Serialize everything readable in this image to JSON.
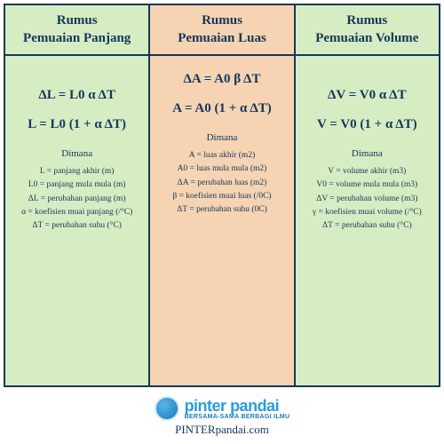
{
  "table": {
    "border_color": "#14375a",
    "text_color": "#14375a",
    "columns": [
      {
        "bg": "#d6edc3",
        "title_line1": "Rumus",
        "title_line2": "Pemuaian Panjang",
        "formula1": "ΔL = L0 α ΔT",
        "formula2": "L = L0 (1 + α ΔT)",
        "where": "Dimana",
        "defs": [
          "L = panjang akhir (m)",
          "L0 = panjang mula mula (m)",
          "ΔL = perubahan panjang (m)",
          "α = koefisien muai panjang (/°C)",
          "ΔT = perubahan suhu (°C)"
        ]
      },
      {
        "bg": "#f5d3b3",
        "title_line1": "Rumus",
        "title_line2": "Pemuaian Luas",
        "formula1": "ΔA = A0 β ΔT",
        "formula2": "A = A0 (1 + α ΔT)",
        "where": "Dimana",
        "defs": [
          "A = luas akhir (m2)",
          "A0 = luas mula mula (m2)",
          "ΔA = perubahan luas (m2)",
          "β = koefisien muai luas (/0C)",
          "ΔT = perubahan suhu (0C)"
        ]
      },
      {
        "bg": "#d6edc3",
        "title_line1": "Rumus",
        "title_line2": "Pemuaian Volume",
        "formula1": "ΔV = V0 α ΔT",
        "formula2": "V = V0 (1 + α ΔT)",
        "where": "Dimana",
        "defs": [
          "V = volume akhir (m3)",
          "V0 = volume mula mula (m3)",
          "ΔV = perubahan volume (m3)",
          "γ = koefisien muai volume (/°C)",
          "ΔT = perubahan suhu (°C)"
        ]
      }
    ]
  },
  "footer": {
    "brand_name": "pinter pandai",
    "brand_tag": "BERSAMA-SAMA BERBAGI ILMU",
    "url": "PINTERpandai.com",
    "logo_bg": "#2a9ed6"
  }
}
